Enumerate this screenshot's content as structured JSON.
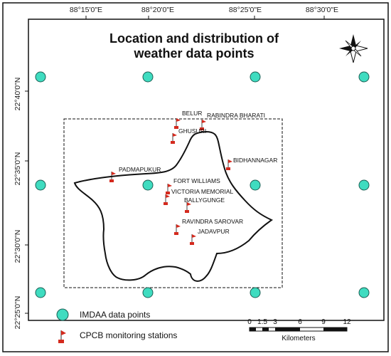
{
  "title_line1": "Location and distribution of",
  "title_line2": "weather data points",
  "lon_ticks": [
    "88°15'0\"E",
    "88°20'0\"E",
    "88°25'0\"E",
    "88°30'0\"E"
  ],
  "lat_ticks": [
    "22°40'0\"N",
    "22°35'0\"N",
    "22°30'0\"N",
    "22°25'0\"N"
  ],
  "stations": [
    {
      "name": "BELUR"
    },
    {
      "name": "RABINDRA BHARATI"
    },
    {
      "name": "GHUSURI"
    },
    {
      "name": "BIDHANNAGAR"
    },
    {
      "name": "PADMAPUKUR"
    },
    {
      "name": "FORT WILLIAMS"
    },
    {
      "name": "VICTORIA MEMORIAL"
    },
    {
      "name": "BALLYGUNGE"
    },
    {
      "name": "RAVINDRA SAROVAR"
    },
    {
      "name": "JADAVPUR"
    }
  ],
  "legend": {
    "imdaa_label": "IMDAA data points",
    "cpcb_label": "CPCB monitoring stations"
  },
  "scale_bar": {
    "labels": [
      "0",
      "1.5",
      "3",
      "6",
      "9",
      "12"
    ],
    "unit": "Kilometers"
  },
  "colors": {
    "imdaa_fill": "#3fdcc0",
    "flag_red": "#d42a1e",
    "outline": "#111111"
  }
}
